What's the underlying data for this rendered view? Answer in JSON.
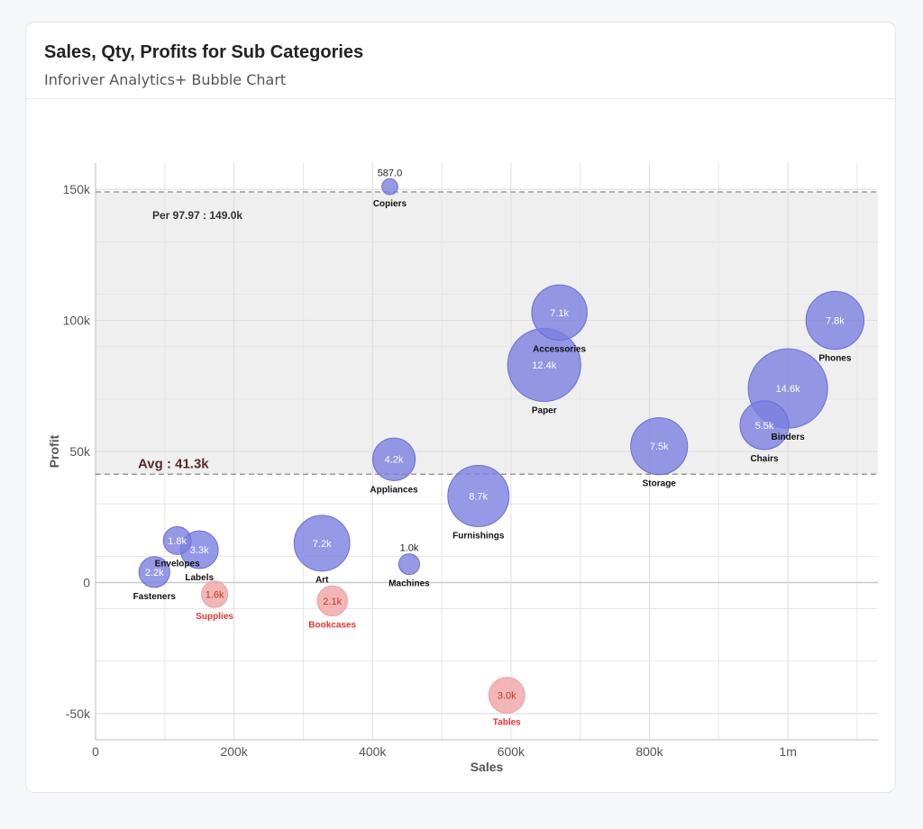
{
  "card": {
    "title": "Sales, Qty, Profits for Sub Categories",
    "subtitle": "Inforiver Analytics+ Bubble Chart"
  },
  "chart_data": {
    "type": "scatter",
    "variant": "bubble",
    "xlabel": "Sales",
    "ylabel": "Profit",
    "xlim": [
      0,
      1130000
    ],
    "ylim": [
      -60000,
      160000
    ],
    "x_ticks": [
      0,
      200000,
      400000,
      600000,
      800000,
      1000000
    ],
    "x_tick_labels": [
      "0",
      "200k",
      "400k",
      "600k",
      "800k",
      "1m"
    ],
    "y_ticks": [
      -50000,
      0,
      50000,
      100000,
      150000
    ],
    "y_tick_labels": [
      "-50k",
      "0",
      "50k",
      "100k",
      "150k"
    ],
    "grid": true,
    "colors": {
      "positive": "#7b7fe0",
      "positive_stroke": "#6a6ed8",
      "negative": "#f0a9a9",
      "negative_label": "#e8332f",
      "band": "#efefef",
      "reference_line": "#9a9a9a",
      "avg_label": "#5c2a2a"
    },
    "reference_lines": [
      {
        "label": "Avg : 41.3k",
        "value": 41300
      },
      {
        "label": "Per 97.97 : 149.0k",
        "value": 149000
      }
    ],
    "points": [
      {
        "name": "Copiers",
        "sales": 425000,
        "profit": 151000,
        "qty": 587,
        "qty_label": "587.0"
      },
      {
        "name": "Accessories",
        "sales": 670000,
        "profit": 103000,
        "qty": 7100,
        "qty_label": "7.1k"
      },
      {
        "name": "Phones",
        "sales": 1068000,
        "profit": 100000,
        "qty": 7800,
        "qty_label": "7.8k"
      },
      {
        "name": "Paper",
        "sales": 648000,
        "profit": 83000,
        "qty": 12400,
        "qty_label": "12.4k"
      },
      {
        "name": "Binders",
        "sales": 1000000,
        "profit": 74000,
        "qty": 14600,
        "qty_label": "14.6k"
      },
      {
        "name": "Chairs",
        "sales": 966000,
        "profit": 60000,
        "qty": 5500,
        "qty_label": "5.5k"
      },
      {
        "name": "Storage",
        "sales": 814000,
        "profit": 52000,
        "qty": 7500,
        "qty_label": "7.5k"
      },
      {
        "name": "Appliances",
        "sales": 431000,
        "profit": 47000,
        "qty": 4200,
        "qty_label": "4.2k"
      },
      {
        "name": "Furnishings",
        "sales": 553000,
        "profit": 33000,
        "qty": 8700,
        "qty_label": "8.7k"
      },
      {
        "name": "Art",
        "sales": 327000,
        "profit": 15000,
        "qty": 7200,
        "qty_label": "7.2k"
      },
      {
        "name": "Envelopes",
        "sales": 118000,
        "profit": 16000,
        "qty": 1800,
        "qty_label": "1.8k"
      },
      {
        "name": "Labels",
        "sales": 150000,
        "profit": 12500,
        "qty": 3300,
        "qty_label": "3.3k"
      },
      {
        "name": "Fasteners",
        "sales": 85000,
        "profit": 4000,
        "qty": 2200,
        "qty_label": "2.2k"
      },
      {
        "name": "Machines",
        "sales": 453000,
        "profit": 7000,
        "qty": 1000,
        "qty_label": "1.0k"
      },
      {
        "name": "Supplies",
        "sales": 172000,
        "profit": -4500,
        "qty": 1600,
        "qty_label": "1.6k"
      },
      {
        "name": "Bookcases",
        "sales": 342000,
        "profit": -7000,
        "qty": 2100,
        "qty_label": "2.1k"
      },
      {
        "name": "Tables",
        "sales": 594000,
        "profit": -43000,
        "qty": 3000,
        "qty_label": "3.0k"
      }
    ]
  }
}
